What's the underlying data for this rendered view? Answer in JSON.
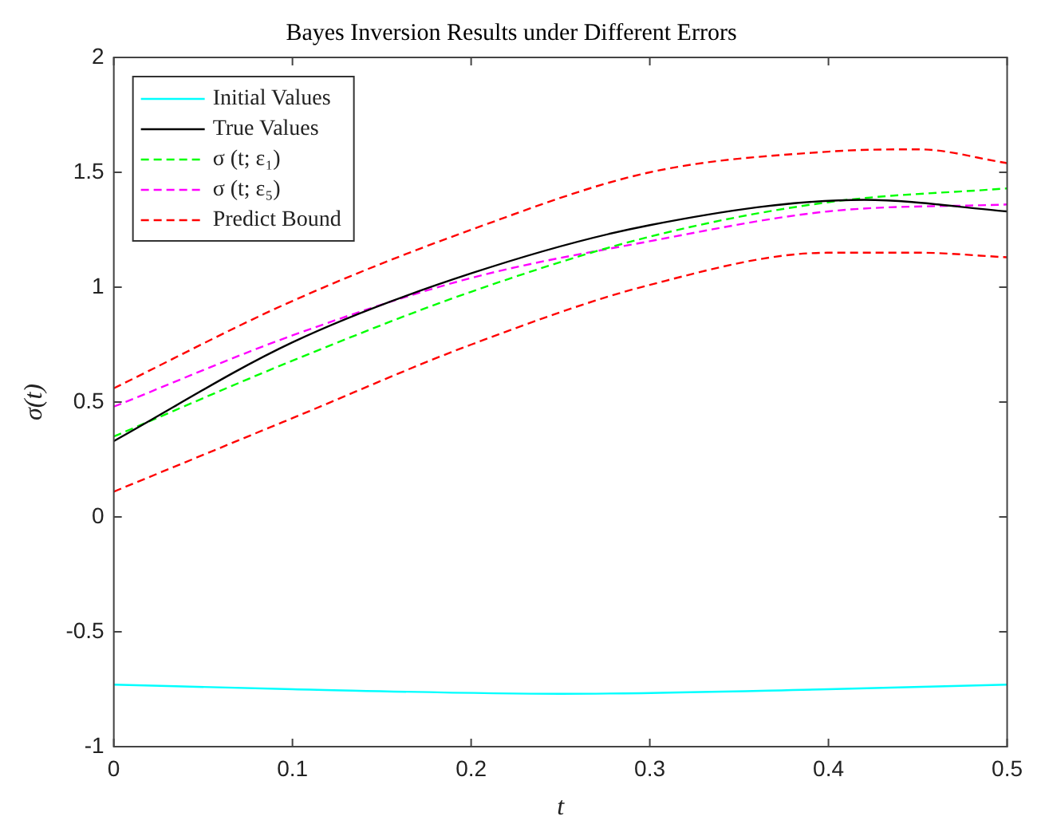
{
  "chart_data": {
    "type": "line",
    "title": "Bayes Inversion Results under Different Errors",
    "xlabel": "t",
    "ylabel": "σ(t)",
    "x": [
      0,
      0.1,
      0.2,
      0.3,
      0.4,
      0.5
    ],
    "series": [
      {
        "name": "Initial Values",
        "color": "#00ffff",
        "line_style": "solid",
        "x": [
          0,
          0.1,
          0.25,
          0.4,
          0.5
        ],
        "values": [
          -0.73,
          -0.75,
          -0.77,
          -0.75,
          -0.73
        ]
      },
      {
        "name": "True Values",
        "color": "#000000",
        "line_style": "solid",
        "x": [
          0,
          0.1,
          0.2,
          0.3,
          0.42,
          0.5
        ],
        "values": [
          0.33,
          0.76,
          1.06,
          1.27,
          1.38,
          1.33
        ]
      },
      {
        "name": "σ (t; ε₁)",
        "color": "#00ff00",
        "line_style": "dashed",
        "values": [
          0.35,
          0.68,
          0.98,
          1.22,
          1.37,
          1.43
        ]
      },
      {
        "name": "σ (t; ε₅)",
        "color": "#ff00ff",
        "line_style": "dashed",
        "values": [
          0.48,
          0.79,
          1.04,
          1.2,
          1.33,
          1.36
        ]
      },
      {
        "name": "Predict Bound",
        "color": "#ff0000",
        "line_style": "dashed",
        "x": [
          0,
          0.1,
          0.2,
          0.3,
          0.4,
          0.45,
          0.5
        ],
        "values": [
          0.56,
          0.94,
          1.25,
          1.5,
          1.59,
          1.6,
          1.54
        ]
      },
      {
        "color": "#ff0000",
        "line_style": "dashed",
        "x": [
          0,
          0.1,
          0.2,
          0.3,
          0.4,
          0.45,
          0.5
        ],
        "values": [
          0.11,
          0.43,
          0.75,
          1.01,
          1.15,
          1.15,
          1.13
        ]
      }
    ],
    "xlim": [
      0,
      0.5
    ],
    "xticks": [
      0,
      0.1,
      0.2,
      0.3,
      0.4,
      0.5
    ],
    "ylim": [
      -1,
      2
    ],
    "yticks": [
      -1,
      -0.5,
      0,
      0.5,
      1,
      1.5,
      2
    ],
    "grid": false,
    "legend": "top left",
    "marker": "none"
  }
}
